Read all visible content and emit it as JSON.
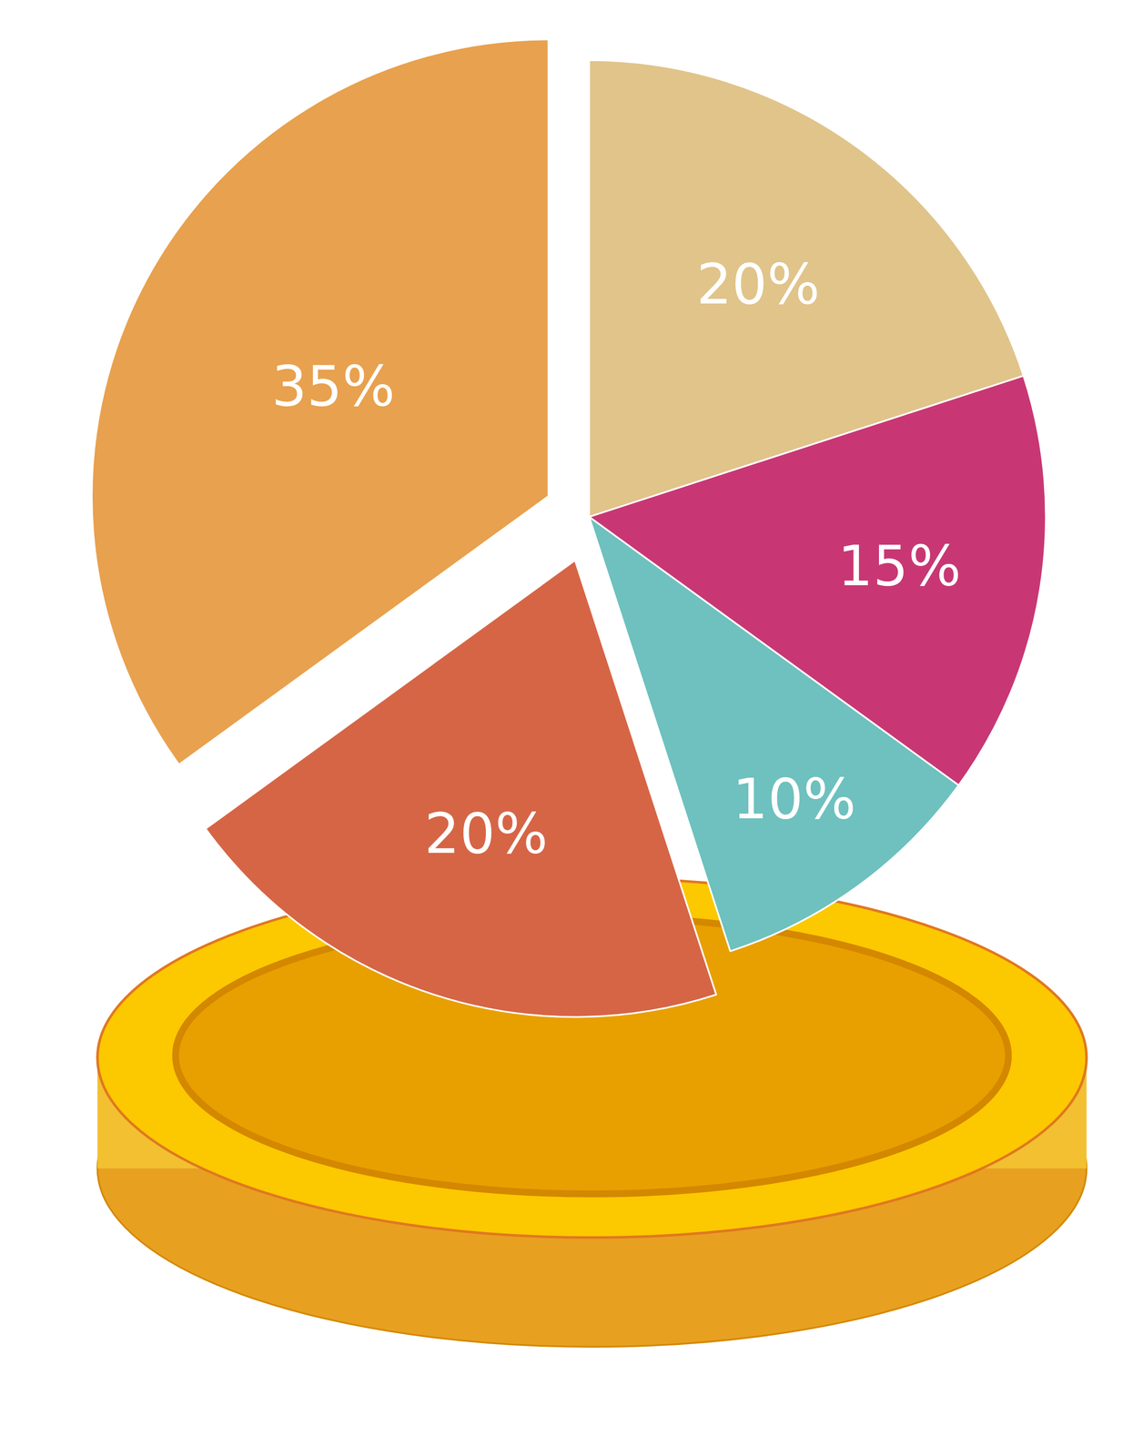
{
  "chart_data": {
    "type": "pie",
    "values": [
      20,
      15,
      10,
      20,
      35
    ],
    "value_labels": [
      "20%",
      "15%",
      "10%",
      "20%",
      "35%"
    ],
    "colors": [
      "#e0c48a",
      "#c83774",
      "#6ec1be",
      "#d66546",
      "#e8a14e"
    ],
    "data_labels": true
  }
}
